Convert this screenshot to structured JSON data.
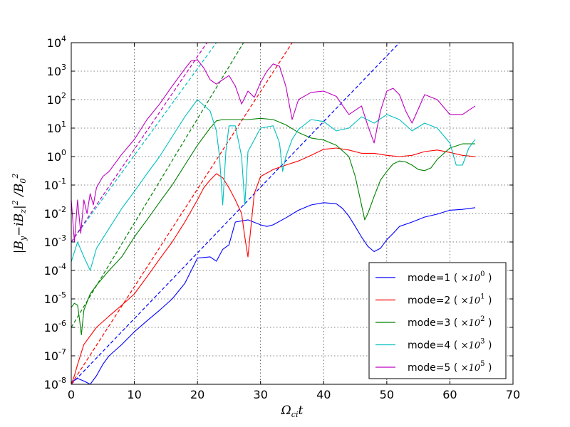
{
  "chart_data": {
    "type": "line",
    "title": "",
    "xlabel": "Ω_ci t",
    "ylabel": "|B_y − iB_z|² / B_0²",
    "xlim": [
      0,
      70
    ],
    "ylim_log10": [
      -8,
      4
    ],
    "yscale": "log",
    "grid": true,
    "legend_position": "lower-right",
    "x_ticks": [
      "0",
      "10",
      "20",
      "30",
      "40",
      "50",
      "60",
      "70"
    ],
    "y_ticks": [
      {
        "base": "10",
        "exp": "-8"
      },
      {
        "base": "10",
        "exp": "-7"
      },
      {
        "base": "10",
        "exp": "-6"
      },
      {
        "base": "10",
        "exp": "-5"
      },
      {
        "base": "10",
        "exp": "-4"
      },
      {
        "base": "10",
        "exp": "-3"
      },
      {
        "base": "10",
        "exp": "-2"
      },
      {
        "base": "10",
        "exp": "-1"
      },
      {
        "base": "10",
        "exp": "0"
      },
      {
        "base": "10",
        "exp": "1"
      },
      {
        "base": "10",
        "exp": "2"
      },
      {
        "base": "10",
        "exp": "3"
      },
      {
        "base": "10",
        "exp": "4"
      }
    ],
    "series": [
      {
        "name": "mode=1",
        "scale": "×10",
        "scale_exp": "0",
        "color": "#0000ff",
        "x": [
          0,
          1,
          2,
          3,
          4,
          5,
          6,
          8,
          10,
          12,
          14,
          16,
          18,
          20,
          22,
          23,
          24,
          25,
          26,
          28,
          30,
          31,
          32,
          34,
          36,
          38,
          40,
          42,
          43,
          44,
          45,
          46,
          47,
          48,
          49,
          50,
          51,
          52,
          54,
          56,
          58,
          60,
          62,
          64
        ],
        "y": [
          1.2e-08,
          1.6e-08,
          1.3e-08,
          1e-08,
          2e-08,
          5e-08,
          1e-07,
          2.5e-07,
          7e-07,
          1.7e-06,
          4e-06,
          1e-05,
          3.5e-05,
          0.00027,
          0.0003,
          0.00021,
          0.00055,
          0.0008,
          0.005,
          0.006,
          0.004,
          0.0035,
          0.004,
          0.007,
          0.013,
          0.02,
          0.024,
          0.022,
          0.015,
          0.008,
          0.0035,
          0.0015,
          0.0007,
          0.00046,
          0.0006,
          0.0012,
          0.002,
          0.0035,
          0.005,
          0.0075,
          0.0095,
          0.013,
          0.014,
          0.016
        ]
      },
      {
        "name": "mode=2",
        "scale": "×10",
        "scale_exp": "1",
        "color": "#ff0000",
        "x": [
          0,
          0.5,
          1,
          2,
          4,
          6,
          8,
          10,
          12,
          14,
          16,
          18,
          20,
          21,
          22,
          23,
          24,
          25,
          26,
          27,
          27.5,
          28,
          29,
          30,
          32,
          34,
          36,
          38,
          40,
          42,
          44,
          46,
          48,
          50,
          52,
          54,
          56,
          58,
          60,
          62,
          64
        ],
        "y": [
          1e-08,
          2e-08,
          5e-08,
          2.5e-07,
          1e-06,
          2.5e-06,
          6e-06,
          1.5e-05,
          6e-05,
          0.00025,
          0.001,
          0.005,
          0.03,
          0.08,
          0.15,
          0.25,
          0.18,
          0.08,
          0.03,
          0.01,
          0.0015,
          0.0003,
          0.05,
          0.2,
          0.35,
          0.5,
          0.7,
          1.1,
          1.8,
          2.0,
          1.7,
          1.3,
          1.3,
          1.1,
          1.0,
          1.1,
          1.5,
          1.7,
          1.4,
          1.1,
          1.0
        ]
      },
      {
        "name": "mode=3",
        "scale": "×10",
        "scale_exp": "2",
        "color": "#008000",
        "x": [
          0,
          0.5,
          1,
          1.3,
          1.6,
          2,
          3,
          4,
          6,
          8,
          10,
          12,
          14,
          16,
          18,
          20,
          22,
          23,
          24,
          26,
          28,
          30,
          32,
          34,
          36,
          38,
          40,
          42,
          44,
          45,
          46,
          46.5,
          47,
          48,
          49,
          50,
          51,
          52,
          53,
          54,
          55,
          56,
          57,
          58,
          60,
          62,
          64
        ],
        "y": [
          5e-06,
          7e-06,
          6e-06,
          2e-06,
          5.5e-07,
          4e-06,
          1.5e-05,
          3e-05,
          0.0001,
          0.0003,
          0.0015,
          0.006,
          0.025,
          0.1,
          0.5,
          2.5,
          10.0,
          18.0,
          20.0,
          20.0,
          20.0,
          22.0,
          20.0,
          13.0,
          7.0,
          4.5,
          3.8,
          2.5,
          1.0,
          0.2,
          0.02,
          0.006,
          0.01,
          0.04,
          0.15,
          0.3,
          0.55,
          0.7,
          0.65,
          0.5,
          0.35,
          0.32,
          0.4,
          0.8,
          2.0,
          2.8,
          2.8
        ]
      },
      {
        "name": "mode=4",
        "scale": "×10",
        "scale_exp": "3",
        "color": "#00bfbf",
        "x": [
          0,
          1,
          2,
          3,
          4,
          6,
          8,
          10,
          12,
          14,
          16,
          18,
          20,
          22,
          23,
          23.5,
          24,
          24.5,
          25,
          26,
          27,
          27.5,
          28,
          30,
          32,
          33,
          33.5,
          34,
          35,
          36,
          38,
          40,
          42,
          44,
          46,
          48,
          50,
          52,
          54,
          56,
          58,
          60,
          61,
          62,
          63,
          64
        ],
        "y": [
          0.0002,
          0.001,
          0.0003,
          0.0001,
          0.0006,
          0.003,
          0.015,
          0.06,
          0.25,
          1.0,
          5.0,
          25.0,
          100.0,
          40.0,
          8.0,
          1.0,
          0.02,
          1.5,
          12.0,
          12.0,
          1.0,
          0.02,
          1.5,
          10.0,
          12.0,
          3.0,
          0.3,
          1.0,
          4.0,
          9.0,
          20.0,
          17.0,
          8.0,
          10.0,
          25.0,
          15.0,
          30.0,
          20.0,
          8.0,
          15.0,
          10.0,
          3.0,
          0.5,
          0.5,
          2.0,
          4.0
        ]
      },
      {
        "name": "mode=5",
        "scale": "×10",
        "scale_exp": "5",
        "color": "#bf00bf",
        "x": [
          0,
          0.5,
          1,
          1.5,
          2,
          2.5,
          3,
          3.5,
          4,
          5,
          6,
          8,
          10,
          12,
          14,
          16,
          18,
          19,
          20,
          21,
          22,
          23,
          24,
          25,
          26,
          27,
          28,
          29,
          30,
          31,
          32,
          33,
          34,
          35,
          36,
          38,
          40,
          42,
          44,
          46,
          47,
          48,
          49,
          50,
          51,
          52,
          53,
          54,
          56,
          58,
          60,
          62,
          64
        ],
        "y": [
          0.03,
          0.001,
          0.03,
          0.002,
          0.03,
          0.01,
          0.05,
          0.02,
          0.08,
          0.2,
          0.3,
          1.2,
          4.0,
          20.0,
          70.0,
          300.0,
          1200.0,
          2300.0,
          2500.0,
          1300.0,
          500.0,
          350.0,
          500.0,
          700.0,
          300.0,
          70.0,
          200.0,
          120.0,
          400.0,
          1000.0,
          1800.0,
          1500.0,
          300.0,
          20.0,
          100.0,
          180.0,
          200.0,
          130.0,
          30.0,
          60.0,
          12.0,
          3.0,
          40.0,
          200.0,
          250.0,
          150.0,
          40.0,
          15.0,
          150.0,
          100.0,
          30.0,
          30.0,
          60.0
        ]
      }
    ],
    "fits": [
      {
        "color": "#0000ff",
        "x": [
          0,
          52
        ],
        "y": [
          1e-08,
          10000.0
        ]
      },
      {
        "color": "#ff0000",
        "x": [
          0,
          35
        ],
        "y": [
          1e-08,
          10000.0
        ]
      },
      {
        "color": "#008000",
        "x": [
          0,
          27.3
        ],
        "y": [
          1e-06,
          10000.0
        ]
      },
      {
        "color": "#00bfbf",
        "x": [
          0,
          23
        ],
        "y": [
          0.001,
          10000.0
        ]
      },
      {
        "color": "#bf00bf",
        "x": [
          0,
          21.5
        ],
        "y": [
          0.001,
          10000.0
        ]
      }
    ]
  }
}
